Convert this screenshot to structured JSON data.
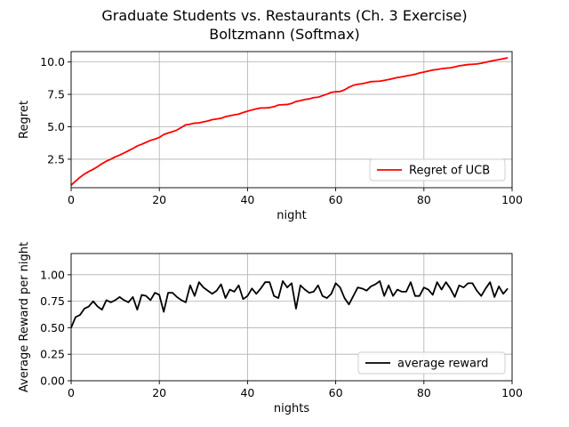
{
  "figure": {
    "title_line1": "Graduate Students vs. Restaurants (Ch. 3 Exercise)",
    "title_line2": "Boltzmann (Softmax)"
  },
  "chart_data": [
    {
      "type": "line",
      "xlabel": "night",
      "ylabel": "Regret",
      "xlim": [
        0,
        100
      ],
      "ylim": [
        0.3,
        10.8
      ],
      "xticks": [
        0,
        20,
        40,
        60,
        80,
        100
      ],
      "yticks": [
        2.5,
        5.0,
        7.5,
        10.0
      ],
      "xtick_labels": [
        "0",
        "20",
        "40",
        "60",
        "80",
        "100"
      ],
      "ytick_labels": [
        "2.5",
        "5.0",
        "7.5",
        "10.0"
      ],
      "grid": true,
      "legend_position": "lower-right",
      "color": "#ff0000",
      "series": [
        {
          "name": "Regret of UCB",
          "x": [
            0,
            1,
            2,
            3,
            4,
            5,
            6,
            7,
            8,
            9,
            10,
            11,
            12,
            13,
            14,
            15,
            16,
            17,
            18,
            19,
            20,
            21,
            22,
            23,
            24,
            25,
            26,
            27,
            28,
            29,
            30,
            31,
            32,
            33,
            34,
            35,
            36,
            37,
            38,
            39,
            40,
            41,
            42,
            43,
            44,
            45,
            46,
            47,
            48,
            49,
            50,
            51,
            52,
            53,
            54,
            55,
            56,
            57,
            58,
            59,
            60,
            61,
            62,
            63,
            64,
            65,
            66,
            67,
            68,
            69,
            70,
            71,
            72,
            73,
            74,
            75,
            76,
            77,
            78,
            79,
            80,
            81,
            82,
            83,
            84,
            85,
            86,
            87,
            88,
            89,
            90,
            91,
            92,
            93,
            94,
            95,
            96,
            97,
            98,
            99
          ],
          "values": [
            0.5,
            0.8,
            1.1,
            1.35,
            1.55,
            1.72,
            1.92,
            2.15,
            2.35,
            2.5,
            2.68,
            2.82,
            2.98,
            3.15,
            3.32,
            3.52,
            3.65,
            3.8,
            3.95,
            4.05,
            4.18,
            4.4,
            4.52,
            4.62,
            4.75,
            4.95,
            5.15,
            5.2,
            5.28,
            5.3,
            5.38,
            5.45,
            5.55,
            5.6,
            5.65,
            5.78,
            5.85,
            5.92,
            5.98,
            6.1,
            6.2,
            6.3,
            6.38,
            6.45,
            6.45,
            6.48,
            6.55,
            6.68,
            6.7,
            6.72,
            6.8,
            6.95,
            7.02,
            7.1,
            7.15,
            7.25,
            7.28,
            7.4,
            7.52,
            7.65,
            7.7,
            7.72,
            7.85,
            8.05,
            8.2,
            8.28,
            8.32,
            8.4,
            8.48,
            8.5,
            8.52,
            8.58,
            8.65,
            8.72,
            8.8,
            8.85,
            8.92,
            8.98,
            9.05,
            9.15,
            9.22,
            9.3,
            9.38,
            9.42,
            9.48,
            9.52,
            9.55,
            9.62,
            9.7,
            9.75,
            9.8,
            9.82,
            9.85,
            9.9,
            9.98,
            10.05,
            10.12,
            10.18,
            10.25,
            10.32
          ]
        }
      ]
    },
    {
      "type": "line",
      "xlabel": "nights",
      "ylabel": "Average Reward per night",
      "xlim": [
        0,
        100
      ],
      "ylim": [
        0.0,
        1.2
      ],
      "xticks": [
        0,
        20,
        40,
        60,
        80,
        100
      ],
      "yticks": [
        0.0,
        0.25,
        0.5,
        0.75,
        1.0
      ],
      "xtick_labels": [
        "0",
        "20",
        "40",
        "60",
        "80",
        "100"
      ],
      "ytick_labels": [
        "0.00",
        "0.25",
        "0.50",
        "0.75",
        "1.00"
      ],
      "grid": true,
      "legend_position": "lower-right",
      "color": "#000000",
      "series": [
        {
          "name": "average reward",
          "x": [
            0,
            1,
            2,
            3,
            4,
            5,
            6,
            7,
            8,
            9,
            10,
            11,
            12,
            13,
            14,
            15,
            16,
            17,
            18,
            19,
            20,
            21,
            22,
            23,
            24,
            25,
            26,
            27,
            28,
            29,
            30,
            31,
            32,
            33,
            34,
            35,
            36,
            37,
            38,
            39,
            40,
            41,
            42,
            43,
            44,
            45,
            46,
            47,
            48,
            49,
            50,
            51,
            52,
            53,
            54,
            55,
            56,
            57,
            58,
            59,
            60,
            61,
            62,
            63,
            64,
            65,
            66,
            67,
            68,
            69,
            70,
            71,
            72,
            73,
            74,
            75,
            76,
            77,
            78,
            79,
            80,
            81,
            82,
            83,
            84,
            85,
            86,
            87,
            88,
            89,
            90,
            91,
            92,
            93,
            94,
            95,
            96,
            97,
            98,
            99
          ],
          "values": [
            0.5,
            0.6,
            0.62,
            0.68,
            0.7,
            0.75,
            0.7,
            0.67,
            0.76,
            0.74,
            0.76,
            0.79,
            0.76,
            0.74,
            0.79,
            0.67,
            0.81,
            0.8,
            0.76,
            0.83,
            0.81,
            0.65,
            0.83,
            0.83,
            0.79,
            0.76,
            0.74,
            0.9,
            0.8,
            0.93,
            0.88,
            0.85,
            0.82,
            0.85,
            0.91,
            0.78,
            0.86,
            0.84,
            0.9,
            0.77,
            0.8,
            0.87,
            0.82,
            0.87,
            0.93,
            0.93,
            0.8,
            0.78,
            0.94,
            0.88,
            0.92,
            0.68,
            0.9,
            0.86,
            0.83,
            0.84,
            0.9,
            0.8,
            0.78,
            0.82,
            0.92,
            0.88,
            0.78,
            0.72,
            0.8,
            0.88,
            0.87,
            0.85,
            0.89,
            0.91,
            0.94,
            0.8,
            0.9,
            0.8,
            0.86,
            0.84,
            0.84,
            0.93,
            0.8,
            0.8,
            0.88,
            0.86,
            0.81,
            0.93,
            0.86,
            0.93,
            0.87,
            0.79,
            0.9,
            0.88,
            0.92,
            0.92,
            0.85,
            0.8,
            0.87,
            0.93,
            0.79,
            0.89,
            0.82,
            0.87
          ]
        }
      ]
    }
  ]
}
